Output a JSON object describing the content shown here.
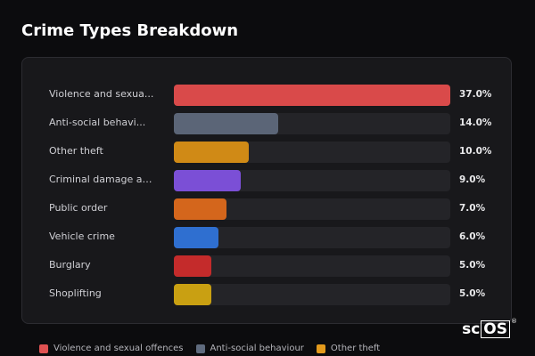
{
  "title": "Crime Types Breakdown",
  "brand": {
    "prefix": "sc",
    "boxed": "OS",
    "mark": "®"
  },
  "chart_data": {
    "type": "bar",
    "orientation": "horizontal",
    "title": "Crime Types Breakdown",
    "xlim": [
      0,
      37
    ],
    "categories": [
      "Violence and sexual offences",
      "Anti-social behaviour",
      "Other theft",
      "Criminal damage and arson",
      "Public order",
      "Vehicle crime",
      "Burglary",
      "Shoplifting"
    ],
    "display_labels": [
      "Violence and sexua...",
      "Anti-social behavi...",
      "Other theft",
      "Criminal damage an...",
      "Public order",
      "Vehicle crime",
      "Burglary",
      "Shoplifting"
    ],
    "values": [
      37.0,
      14.0,
      10.0,
      9.0,
      7.0,
      6.0,
      5.0,
      5.0
    ],
    "value_labels": [
      "37.0%",
      "14.0%",
      "10.0%",
      "9.0%",
      "7.0%",
      "6.0%",
      "5.0%",
      "5.0%"
    ],
    "colors": [
      "#d94a4a",
      "#5b6577",
      "#d08a16",
      "#7b4fd6",
      "#d4661c",
      "#2f6fd0",
      "#c42b2b",
      "#c9a012"
    ],
    "legend": {
      "placement": "bottom-left",
      "entries": [
        {
          "label": "Violence and sexual offences",
          "color": "#e05252"
        },
        {
          "label": "Anti-social behaviour",
          "color": "#5f6b7e"
        },
        {
          "label": "Other theft",
          "color": "#e39a1c"
        }
      ]
    },
    "grid": false
  }
}
